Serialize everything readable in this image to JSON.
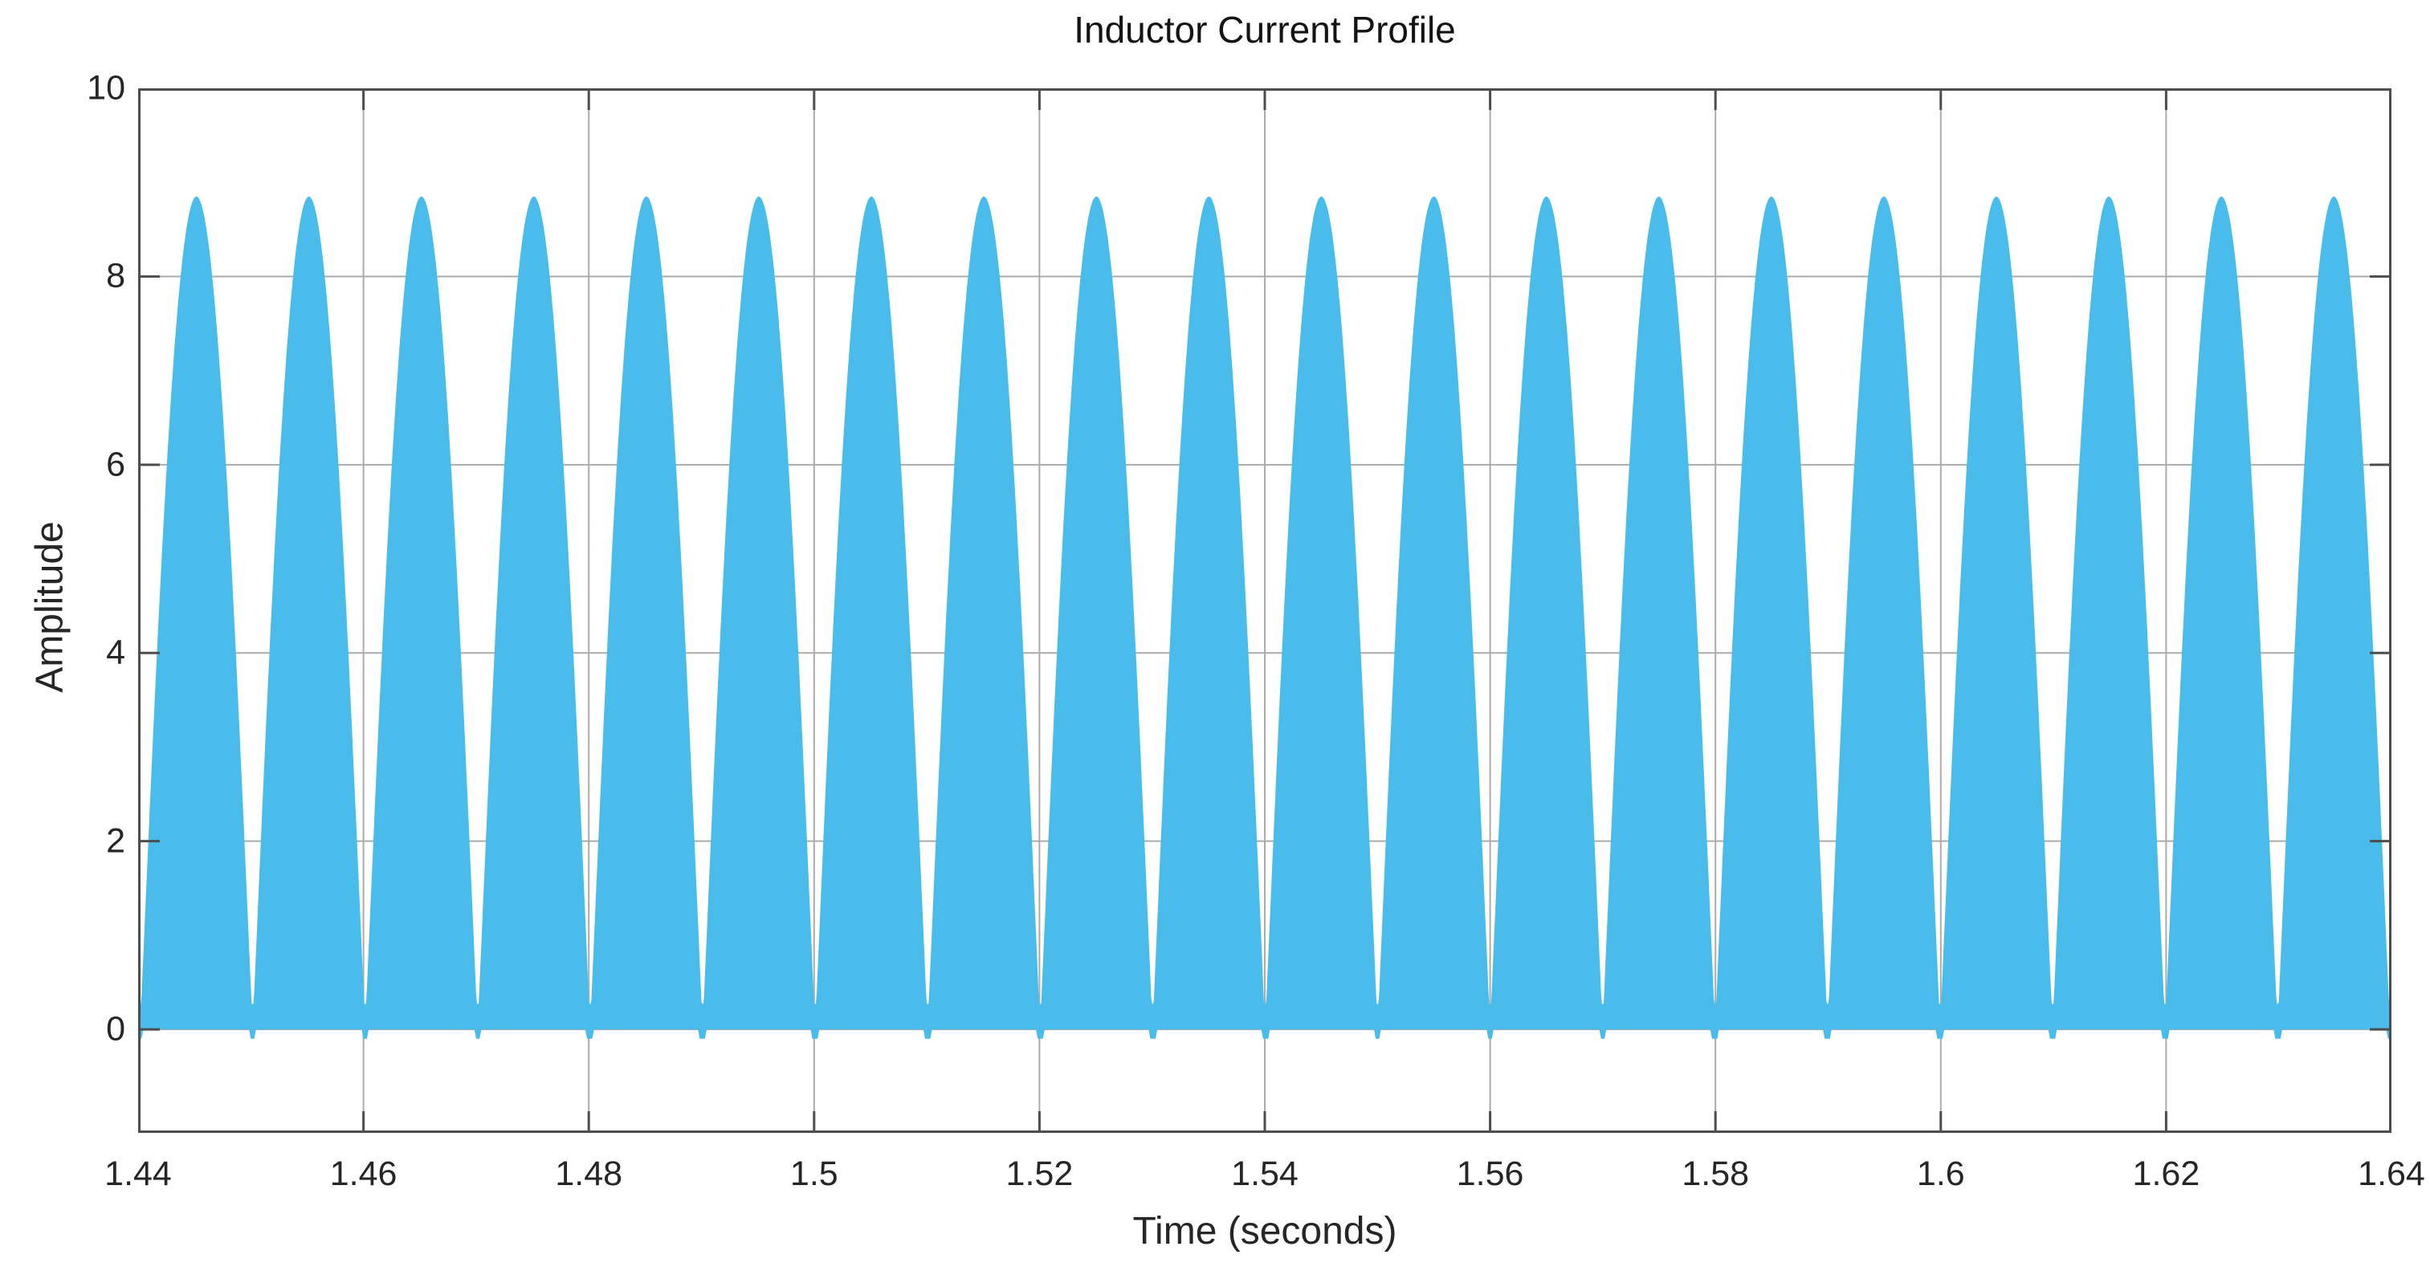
{
  "figure": {
    "title": "Inductor Current Profile",
    "xlabel": "Time (seconds)",
    "ylabel": "Amplitude"
  },
  "chart_data": {
    "type": "area",
    "title": "Inductor Current Profile",
    "xlabel": "Time (seconds)",
    "ylabel": "Amplitude",
    "xlim": [
      1.44,
      1.64
    ],
    "ylim": [
      -1.1,
      10
    ],
    "xticks": [
      1.44,
      1.46,
      1.48,
      1.5,
      1.52,
      1.54,
      1.56,
      1.58,
      1.6,
      1.62,
      1.64
    ],
    "xtick_labels": [
      "1.44",
      "1.46",
      "1.48",
      "1.5",
      "1.52",
      "1.54",
      "1.56",
      "1.58",
      "1.6",
      "1.62",
      "1.64"
    ],
    "yticks": [
      0,
      2,
      4,
      6,
      8,
      10
    ],
    "ytick_labels": [
      "0",
      "2",
      "4",
      "6",
      "8",
      "10"
    ],
    "grid": true,
    "legend": "none",
    "box": true,
    "tick_direction": "in",
    "series": [
      {
        "name": "inductor current",
        "color": "#49BCEB",
        "style": "solid filled band (high-frequency switching ripple between 0 and a rectified-sine envelope)",
        "envelope": "peak_amplitude * |sin(pi * (t - first_valley_time_s) / hump_period_s)|",
        "peak_amplitude": 8.85,
        "hump_period_s": 0.009985,
        "first_valley_time_s": 1.44018,
        "num_humps": 20,
        "ripple_floor_amplitude": 0.27,
        "baseline_amplitude": 0,
        "peak_times_s": [
          1.4452,
          1.4552,
          1.4651,
          1.4751,
          1.4851,
          1.4951,
          1.5051,
          1.5151,
          1.5251,
          1.535,
          1.545,
          1.555,
          1.565,
          1.575,
          1.585,
          1.595,
          1.6049,
          1.6149,
          1.6249,
          1.6349
        ],
        "peak_values": [
          8.85,
          8.85,
          8.85,
          8.85,
          8.85,
          8.85,
          8.85,
          8.85,
          8.85,
          8.85,
          8.85,
          8.85,
          8.85,
          8.85,
          8.85,
          8.85,
          8.85,
          8.85,
          8.85,
          8.85
        ]
      }
    ],
    "colors": {
      "background": "#ffffff",
      "series_fill": "#49BCEB",
      "grid_color": "#ababab",
      "axis_border_color": "#4d4d4d",
      "tick_color": "#4d4d4d",
      "label_color": "#262626",
      "title_color": "#141414"
    }
  }
}
